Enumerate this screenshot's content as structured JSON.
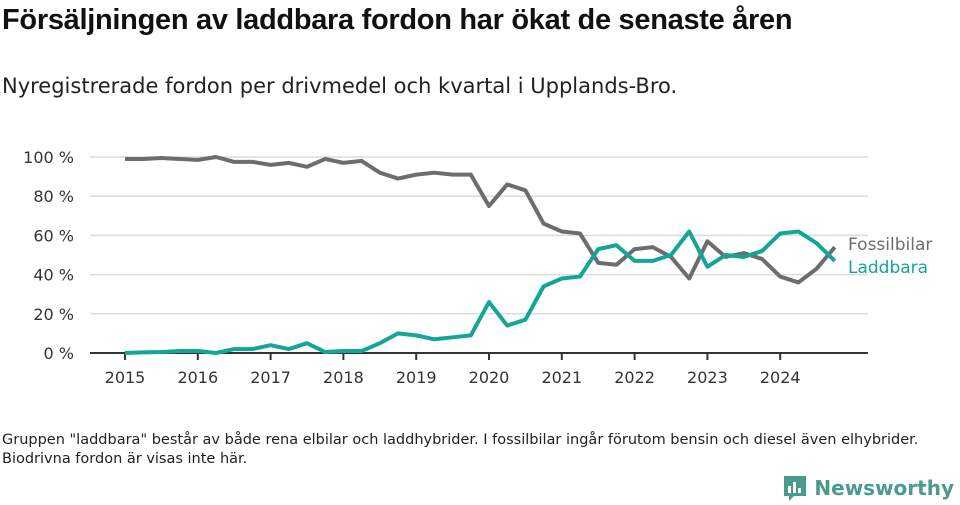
{
  "title": "Försäljningen av laddbara fordon har ökat de senaste åren",
  "subtitle": "Nyregistrerade fordon per drivmedel och kvartal i Upplands-Bro.",
  "note": "Gruppen \"laddbara\" består av både rena elbilar och laddhybrider. I fossilbilar ingår förutom bensin och diesel även elhybrider. Biodrivna fordon är visas inte här.",
  "brand": "Newsworthy",
  "chart_data": {
    "type": "line",
    "xlabel": "",
    "ylabel": "",
    "ylim": [
      0,
      100
    ],
    "xlim": [
      2015,
      2025
    ],
    "yticks": [
      0,
      20,
      40,
      60,
      80,
      100
    ],
    "ytick_labels": [
      "0 %",
      "20 %",
      "40 %",
      "60 %",
      "80 %",
      "100 %"
    ],
    "xticks": [
      2015,
      2016,
      2017,
      2018,
      2019,
      2020,
      2021,
      2022,
      2023,
      2024
    ],
    "xtick_labels": [
      "2015",
      "2016",
      "2017",
      "2018",
      "2019",
      "2020",
      "2021",
      "2022",
      "2023",
      "2024"
    ],
    "grid": true,
    "legend": "end-of-line labels",
    "x_start": 2015,
    "x_step": 0.25,
    "series": [
      {
        "name": "Fossilbilar",
        "color": "#6d6d6f",
        "values": [
          99,
          99,
          99.5,
          99,
          98.5,
          100,
          97.5,
          97.5,
          96,
          97,
          95,
          99,
          97,
          98,
          92,
          89,
          91,
          92,
          91,
          91,
          75,
          86,
          83,
          66,
          62,
          61,
          46,
          45,
          53,
          54,
          49,
          38,
          57,
          49,
          51,
          48,
          39,
          36,
          43,
          54
        ]
      },
      {
        "name": "Laddbara",
        "color": "#13a596",
        "values": [
          0,
          0.3,
          0.5,
          1,
          1,
          0,
          2,
          2,
          4,
          2,
          5,
          0.5,
          1,
          1,
          5,
          10,
          9,
          7,
          8,
          9,
          26,
          14,
          17,
          34,
          38,
          39,
          53,
          55,
          47,
          47,
          50,
          62,
          44,
          50,
          49,
          52,
          61,
          62,
          56,
          47
        ]
      }
    ]
  }
}
